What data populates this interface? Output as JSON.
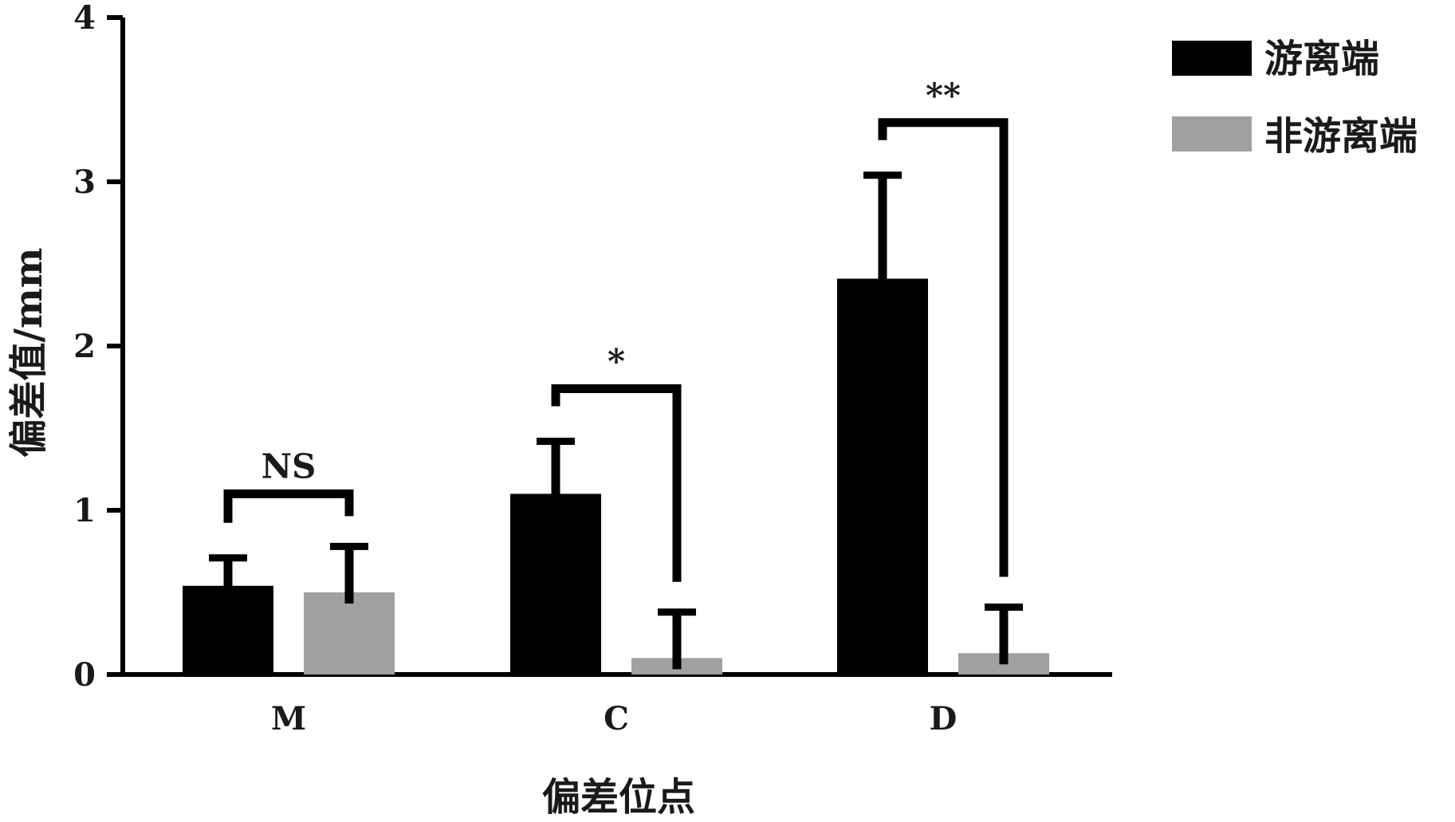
{
  "chart_data": {
    "type": "bar",
    "title": "",
    "xlabel": "偏差位点",
    "ylabel": "偏差值/mm",
    "ylim": [
      0,
      4
    ],
    "yticks": [
      "0",
      "1",
      "2",
      "3",
      "4"
    ],
    "categories": [
      "M",
      "C",
      "D"
    ],
    "series": [
      {
        "name": "游离端",
        "color": "#000000",
        "values": [
          0.54,
          1.1,
          2.41
        ],
        "errors": [
          0.17,
          0.32,
          0.63
        ]
      },
      {
        "name": "非游离端",
        "color": "#a0a0a0",
        "values": [
          0.5,
          0.1,
          0.13
        ],
        "errors": [
          0.28,
          0.28,
          0.28
        ]
      }
    ],
    "significance": [
      "NS",
      "*",
      "**"
    ],
    "legend_position": "top-right",
    "grid": false
  }
}
